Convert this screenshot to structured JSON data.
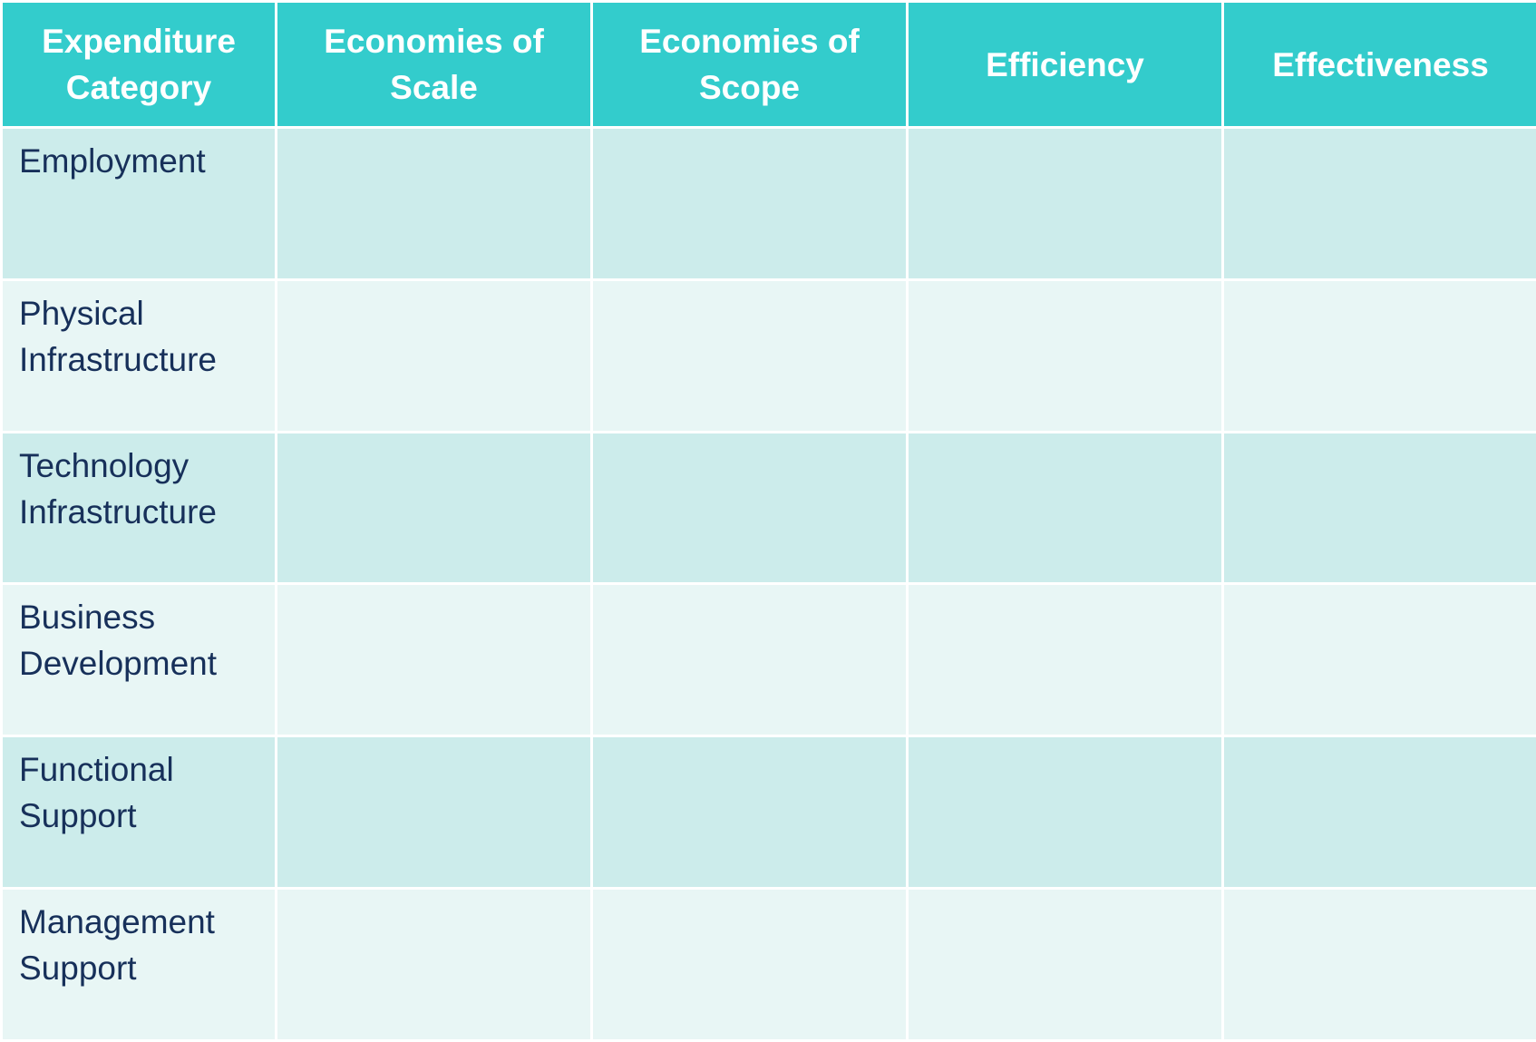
{
  "table": {
    "headers": [
      "Expenditure Category",
      "Economies of Scale",
      "Economies of Scope",
      "Efficiency",
      "Effectiveness"
    ],
    "rows": [
      {
        "category": "Employment",
        "cells": [
          "",
          "",
          "",
          ""
        ]
      },
      {
        "category": "Physical Infrastructure",
        "cells": [
          "",
          "",
          "",
          ""
        ]
      },
      {
        "category": "Technology Infrastructure",
        "cells": [
          "",
          "",
          "",
          ""
        ]
      },
      {
        "category": "Business Development",
        "cells": [
          "",
          "",
          "",
          ""
        ]
      },
      {
        "category": "Functional Support",
        "cells": [
          "",
          "",
          "",
          ""
        ]
      },
      {
        "category": "Management Support",
        "cells": [
          "",
          "",
          "",
          ""
        ]
      }
    ]
  },
  "colors": {
    "header_bg": "#33CCCC",
    "row_dark": "#CCECEB",
    "row_light": "#E8F6F5",
    "category_text": "#17305A",
    "header_text": "#FFFFFF"
  }
}
